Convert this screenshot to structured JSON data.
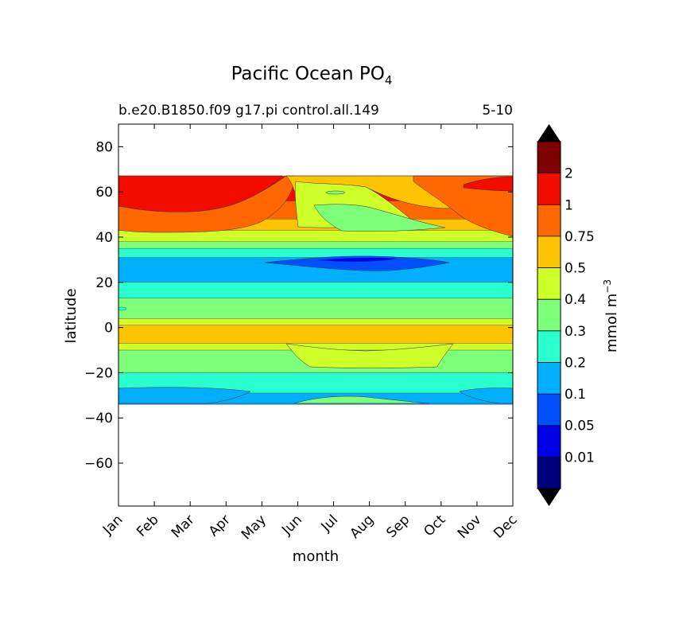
{
  "chart_data": {
    "type": "contourf",
    "title": "Pacific Ocean PO",
    "title_sub": "4",
    "subtitle_left": "b.e20.B1850.f09 g17.pi control.all.149",
    "subtitle_right": "5-10",
    "xlabel": "month",
    "ylabel": "latitude",
    "x_ticks": [
      "Jan",
      "Feb",
      "Mar",
      "Apr",
      "May",
      "Jun",
      "Jul",
      "Aug",
      "Sep",
      "Oct",
      "Nov",
      "Dec"
    ],
    "y_ticks": [
      80,
      60,
      40,
      20,
      0,
      -20,
      -40,
      -60
    ],
    "y_tick_labels": [
      "80",
      "60",
      "40",
      "20",
      "0",
      "−20",
      "−40",
      "−60"
    ],
    "ylim": [
      -79,
      90
    ],
    "data_lat_range": [
      -34,
      67
    ],
    "colorbar": {
      "label": "mmol m",
      "label_sup": "−3",
      "levels": [
        0,
        0.01,
        0.05,
        0.1,
        0.2,
        0.3,
        0.4,
        0.5,
        0.75,
        1,
        2
      ],
      "tick_labels": [
        "0.01",
        "0.05",
        "0.1",
        "0.2",
        "0.3",
        "0.4",
        "0.5",
        "0.75",
        "1",
        "2"
      ],
      "colors": [
        "#00007f",
        "#0000e8",
        "#0050ff",
        "#00b0ff",
        "#29ffce",
        "#7dff7a",
        "#ceff29",
        "#ffc400",
        "#ff6800",
        "#f40b00",
        "#7f0000"
      ],
      "extend": "both"
    },
    "bands": [
      {
        "from": -34,
        "to": -29,
        "color": "#00b0ff"
      },
      {
        "from": -29,
        "to": -20,
        "color": "#29ffce"
      },
      {
        "from": -20,
        "to": -10,
        "color": "#7dff7a"
      },
      {
        "from": -10,
        "to": -7,
        "color": "#ceff29"
      },
      {
        "from": -7,
        "to": 1,
        "color": "#ffc400"
      },
      {
        "from": 1,
        "to": 4,
        "color": "#ceff29"
      },
      {
        "from": 4,
        "to": 13,
        "color": "#7dff7a"
      },
      {
        "from": 13,
        "to": 20,
        "color": "#29ffce"
      },
      {
        "from": 20,
        "to": 31,
        "color": "#00b0ff"
      },
      {
        "from": 31,
        "to": 35,
        "color": "#29ffce"
      },
      {
        "from": 35,
        "to": 38,
        "color": "#7dff7a"
      },
      {
        "from": 38,
        "to": 43,
        "color": "#ceff29"
      },
      {
        "from": 43,
        "to": 48,
        "color": "#ffc400"
      },
      {
        "from": 48,
        "to": 56,
        "color": "#ff6800"
      },
      {
        "from": 56,
        "to": 67,
        "color": "#f40b00"
      }
    ]
  }
}
